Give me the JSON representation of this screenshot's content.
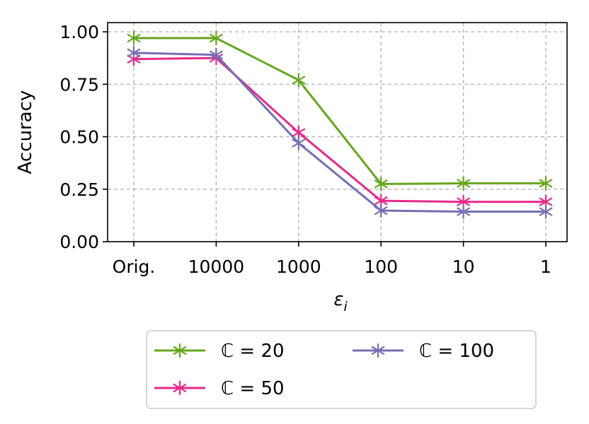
{
  "chart_data": {
    "type": "line",
    "categories": [
      "Orig.",
      "10000",
      "1000",
      "100",
      "10",
      "1"
    ],
    "xlabel": "ε",
    "xlabel_subscript": "i",
    "ylabel": "Accuracy",
    "ylim": [
      0,
      1.0
    ],
    "yticks": [
      "0.00",
      "0.25",
      "0.50",
      "0.75",
      "1.00"
    ],
    "grid": true,
    "legend_position": "below",
    "marker": "star",
    "series": [
      {
        "name": "ℂ = 20",
        "color": "#66a61e",
        "values": [
          0.97,
          0.97,
          0.77,
          0.275,
          0.278,
          0.278
        ]
      },
      {
        "name": "ℂ = 50",
        "color": "#e7298a",
        "values": [
          0.87,
          0.875,
          0.52,
          0.195,
          0.19,
          0.19
        ]
      },
      {
        "name": "ℂ = 100",
        "color": "#7570b3",
        "values": [
          0.9,
          0.89,
          0.47,
          0.148,
          0.143,
          0.143
        ]
      }
    ]
  }
}
